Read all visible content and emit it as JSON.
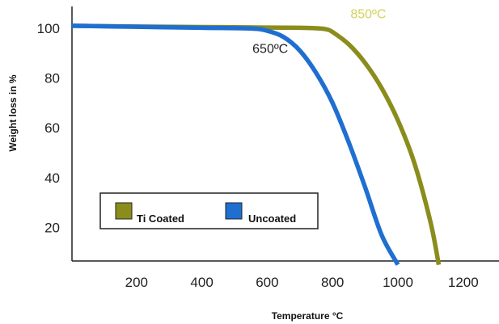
{
  "chart_data": {
    "type": "line",
    "title": "",
    "xlabel": "Temperature °C",
    "ylabel": "Weight loss in %",
    "xlim": [
      0,
      1300
    ],
    "ylim": [
      5,
      110
    ],
    "x_ticks": [
      200,
      400,
      600,
      800,
      1000,
      1200
    ],
    "y_ticks": [
      20,
      40,
      60,
      80,
      100
    ],
    "grid": false,
    "legend_position": "bottom-left",
    "series": [
      {
        "name": "Ti Coated",
        "color": "#8a8d1c",
        "x": [
          0,
          200,
          400,
          600,
          700,
          750,
          780,
          800,
          850,
          900,
          950,
          1000,
          1050,
          1100,
          1125
        ],
        "y": [
          101,
          100.7,
          100.5,
          100.3,
          100.2,
          100,
          99.6,
          98.5,
          93.5,
          86,
          76,
          63,
          46,
          22,
          5
        ]
      },
      {
        "name": "Uncoated",
        "color": "#1f6fd1",
        "x": [
          0,
          200,
          400,
          550,
          600,
          650,
          700,
          750,
          800,
          850,
          900,
          950,
          1000
        ],
        "y": [
          101,
          100.6,
          100.2,
          99.9,
          99,
          96.5,
          91,
          82,
          70,
          54,
          36,
          17,
          5
        ]
      }
    ],
    "annotations": [
      {
        "text": "850ºC",
        "x": 850,
        "y": 106,
        "color": "#d2d25a"
      },
      {
        "text": "650ºC",
        "x": 550,
        "y": 92,
        "color": "#222222"
      }
    ]
  }
}
